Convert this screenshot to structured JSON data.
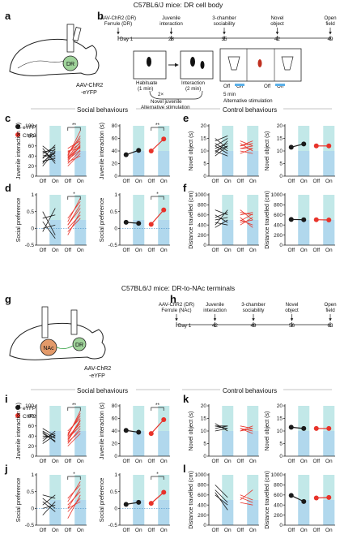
{
  "colors": {
    "on_light": "#a9d2f0",
    "on_teal": "#90d6d6",
    "efyp": "#1a1a1a",
    "chr2": "#e8332a",
    "vector": "#2a9d3a"
  },
  "top": {
    "title": "C57BL6/J mice: DR cell body",
    "panels": {
      "a": "a",
      "b": "b",
      "c": "c",
      "d": "d",
      "e": "e",
      "f": "f"
    },
    "brain_region": "DR",
    "vector": "AAV-ChR2\n-eYFP",
    "timeline": {
      "ticks": [
        {
          "day": "Day 1",
          "label": "AAV-ChR2 (DR)\nFerrule (DR)"
        },
        {
          "day": "28",
          "label": "Juvenile\ninteraction"
        },
        {
          "day": "35",
          "label": "3-chamber\nsociability"
        },
        {
          "day": "42",
          "label": "Novel\nobject"
        },
        {
          "day": "49",
          "label": "Open\nfield"
        }
      ]
    },
    "protocol": {
      "habituate": "Habituate\n(1 min)",
      "interaction": "Interaction\n(2 min)",
      "repeat": "2×",
      "juvenile_note": "Novel juvenile\nAlternative stimulation",
      "three_chamber": [
        "Off",
        "On",
        "Off",
        "On"
      ],
      "duration": "5 min",
      "alt_stim": "Alternative stimulation"
    },
    "social_header": "Social behaviours",
    "control_header": "Control behaviours"
  },
  "bottom": {
    "title": "C57BL6/J mice: DR-to-NAc terminals",
    "panels": {
      "g": "g",
      "h": "h",
      "i": "i",
      "j": "j",
      "k": "k",
      "l": "l"
    },
    "brain_region_1": "NAc",
    "brain_region_2": "DR",
    "vector": "AAV-ChR2\n-eYFP",
    "timeline": {
      "ticks": [
        {
          "day": "Day 1",
          "label": "AAV-ChR2 (DR)\nFerrule (NAc)"
        },
        {
          "day": "42",
          "label": "Juvenile\ninteraction"
        },
        {
          "day": "49",
          "label": "3-chamber\nsociability"
        },
        {
          "day": "56",
          "label": "Novel\nobject"
        },
        {
          "day": "63",
          "label": "Open\nfield"
        }
      ]
    },
    "social_header": "Social behaviours",
    "control_header": "Control behaviours"
  },
  "legend": {
    "efyp": "eYFP",
    "chr2": "ChR2"
  },
  "x_ticks": [
    "Off",
    "On"
  ],
  "axis_labels": {
    "juvenile": "Juvenile interaction (s)",
    "social": "Social preference",
    "novel": "Novel object (s)",
    "distance": "Distance travelled (cm)"
  },
  "significance": {
    "c": "**",
    "c_mean": "**",
    "d": "*",
    "d_mean": "*",
    "i": "**",
    "i_mean": "**",
    "j": "*",
    "j_mean": "*"
  },
  "chart_data": [
    {
      "id": "c-left",
      "type": "line",
      "ylabel": "Juvenile interaction (s)",
      "ylim": [
        0,
        100
      ],
      "yticks": [
        0,
        20,
        40,
        60,
        80,
        100
      ],
      "series": [
        {
          "name": "eYFP",
          "pairs": [
            [
              38,
              45
            ],
            [
              50,
              30
            ],
            [
              25,
              55
            ],
            [
              60,
              40
            ],
            [
              30,
              35
            ],
            [
              45,
              58
            ],
            [
              20,
              50
            ],
            [
              55,
              25
            ],
            [
              35,
              62
            ],
            [
              42,
              38
            ],
            [
              28,
              48
            ],
            [
              48,
              52
            ]
          ]
        },
        {
          "name": "ChR2",
          "pairs": [
            [
              30,
              60
            ],
            [
              45,
              75
            ],
            [
              25,
              50
            ],
            [
              50,
              55
            ],
            [
              38,
              68
            ],
            [
              20,
              45
            ],
            [
              55,
              70
            ],
            [
              35,
              58
            ],
            [
              42,
              80
            ],
            [
              28,
              40
            ],
            [
              48,
              65
            ],
            [
              33,
              52
            ],
            [
              40,
              90
            ],
            [
              36,
              62
            ]
          ]
        }
      ]
    },
    {
      "id": "c-right",
      "type": "line",
      "ylabel": "Juvenile interaction (s)",
      "ylim": [
        0,
        80
      ],
      "yticks": [
        0,
        20,
        40,
        60,
        80
      ],
      "series": [
        {
          "name": "eYFP",
          "pairs": [
            [
              34,
              41
            ]
          ]
        },
        {
          "name": "ChR2",
          "pairs": [
            [
              40,
              59
            ]
          ]
        }
      ]
    },
    {
      "id": "d-left",
      "type": "line",
      "ylabel": "Social preference",
      "ylim": [
        -0.5,
        1.0
      ],
      "yticks": [
        -0.5,
        0,
        0.5,
        1.0
      ],
      "series": [
        {
          "name": "eYFP",
          "pairs": [
            [
              0.5,
              -0.2
            ],
            [
              0.3,
              0.4
            ],
            [
              -0.1,
              0.6
            ],
            [
              0.2,
              -0.3
            ],
            [
              0.0,
              0.1
            ]
          ]
        },
        {
          "name": "ChR2",
          "pairs": [
            [
              0.1,
              0.6
            ],
            [
              -0.2,
              0.5
            ],
            [
              0.3,
              0.8
            ],
            [
              0.0,
              0.4
            ],
            [
              0.2,
              0.9
            ],
            [
              -0.1,
              0.3
            ],
            [
              0.1,
              0.7
            ]
          ]
        }
      ]
    },
    {
      "id": "d-right",
      "type": "line",
      "ylabel": "Social preference",
      "ylim": [
        -0.5,
        1.0
      ],
      "yticks": [
        -0.5,
        0,
        0.5,
        1.0
      ],
      "series": [
        {
          "name": "eYFP",
          "pairs": [
            [
              0.18,
              0.15
            ]
          ]
        },
        {
          "name": "ChR2",
          "pairs": [
            [
              0.12,
              0.55
            ]
          ]
        }
      ]
    },
    {
      "id": "e-left",
      "type": "line",
      "ylabel": "Novel object (s)",
      "ylim": [
        0,
        20
      ],
      "yticks": [
        0,
        5,
        10,
        15,
        20
      ],
      "series": [
        {
          "name": "eYFP",
          "pairs": [
            [
              12,
              15
            ],
            [
              10,
              8
            ],
            [
              14,
              16
            ],
            [
              8,
              12
            ],
            [
              11,
              13
            ],
            [
              13,
              10
            ],
            [
              9,
              14
            ],
            [
              15,
              11
            ],
            [
              10,
              12
            ],
            [
              12,
              9
            ]
          ]
        },
        {
          "name": "ChR2",
          "pairs": [
            [
              11,
              12
            ],
            [
              13,
              10
            ],
            [
              9,
              11
            ],
            [
              12,
              13
            ],
            [
              10,
              9
            ],
            [
              14,
              12
            ],
            [
              11,
              11
            ],
            [
              12,
              14
            ]
          ]
        }
      ]
    },
    {
      "id": "e-right",
      "type": "line",
      "ylabel": "Novel object (s)",
      "ylim": [
        0,
        20
      ],
      "yticks": [
        0,
        5,
        10,
        15,
        20
      ],
      "series": [
        {
          "name": "eYFP",
          "pairs": [
            [
              11.5,
              12.8
            ]
          ]
        },
        {
          "name": "ChR2",
          "pairs": [
            [
              12,
              12
            ]
          ]
        }
      ]
    },
    {
      "id": "f-left",
      "type": "line",
      "ylabel": "Distance travelled (cm)",
      "ylim": [
        0,
        1000
      ],
      "yticks": [
        0,
        200,
        400,
        600,
        800,
        1000
      ],
      "series": [
        {
          "name": "eYFP",
          "pairs": [
            [
              400,
              700
            ],
            [
              600,
              450
            ],
            [
              500,
              550
            ],
            [
              700,
              600
            ],
            [
              450,
              400
            ],
            [
              550,
              650
            ],
            [
              350,
              500
            ]
          ]
        },
        {
          "name": "ChR2",
          "pairs": [
            [
              500,
              400
            ],
            [
              600,
              650
            ],
            [
              450,
              500
            ],
            [
              550,
              350
            ],
            [
              650,
              600
            ],
            [
              400,
              550
            ],
            [
              700,
              500
            ],
            [
              480,
              620
            ]
          ]
        }
      ]
    },
    {
      "id": "f-right",
      "type": "line",
      "ylabel": "Distance travelled (cm)",
      "ylim": [
        0,
        1000
      ],
      "yticks": [
        0,
        200,
        400,
        600,
        800,
        1000
      ],
      "series": [
        {
          "name": "eYFP",
          "pairs": [
            [
              510,
              505
            ]
          ]
        },
        {
          "name": "ChR2",
          "pairs": [
            [
              505,
              500
            ]
          ]
        }
      ]
    },
    {
      "id": "i-left",
      "type": "line",
      "ylabel": "Juvenile interaction (s)",
      "ylim": [
        0,
        100
      ],
      "yticks": [
        0,
        20,
        40,
        60,
        80,
        100
      ],
      "series": [
        {
          "name": "eYFP",
          "pairs": [
            [
              45,
              30
            ],
            [
              30,
              50
            ],
            [
              55,
              40
            ],
            [
              40,
              38
            ],
            [
              35,
              45
            ],
            [
              50,
              35
            ],
            [
              25,
              42
            ],
            [
              48,
              28
            ]
          ]
        },
        {
          "name": "ChR2",
          "pairs": [
            [
              30,
              70
            ],
            [
              40,
              90
            ],
            [
              25,
              55
            ],
            [
              45,
              80
            ],
            [
              35,
              60
            ],
            [
              50,
              75
            ],
            [
              20,
              45
            ],
            [
              38,
              65
            ],
            [
              42,
              85
            ],
            [
              28,
              50
            ],
            [
              33,
              72
            ]
          ]
        }
      ]
    },
    {
      "id": "i-right",
      "type": "line",
      "ylabel": "Juvenile interaction (s)",
      "ylim": [
        0,
        80
      ],
      "yticks": [
        0,
        20,
        40,
        60,
        80
      ],
      "series": [
        {
          "name": "eYFP",
          "pairs": [
            [
              41,
              38
            ]
          ]
        },
        {
          "name": "ChR2",
          "pairs": [
            [
              36,
              58
            ]
          ]
        }
      ]
    },
    {
      "id": "j-left",
      "type": "line",
      "ylabel": "Social preference",
      "ylim": [
        -0.5,
        1.0
      ],
      "yticks": [
        -0.5,
        0,
        0.5,
        1.0
      ],
      "series": [
        {
          "name": "eYFP",
          "pairs": [
            [
              0.2,
              -0.1
            ],
            [
              0.4,
              0.3
            ],
            [
              -0.2,
              0.2
            ],
            [
              0.1,
              0.4
            ],
            [
              0.0,
              0.1
            ],
            [
              0.3,
              0.0
            ]
          ]
        },
        {
          "name": "ChR2",
          "pairs": [
            [
              0.0,
              0.6
            ],
            [
              -0.3,
              0.4
            ],
            [
              0.2,
              0.8
            ],
            [
              0.1,
              0.5
            ],
            [
              -0.1,
              0.3
            ],
            [
              0.3,
              0.7
            ],
            [
              0.0,
              0.2
            ]
          ]
        }
      ]
    },
    {
      "id": "j-right",
      "type": "line",
      "ylabel": "Social preference",
      "ylim": [
        -0.5,
        1.0
      ],
      "yticks": [
        -0.5,
        0,
        0.5,
        1.0
      ],
      "series": [
        {
          "name": "eYFP",
          "pairs": [
            [
              0.12,
              0.18
            ]
          ]
        },
        {
          "name": "ChR2",
          "pairs": [
            [
              0.15,
              0.48
            ]
          ]
        }
      ]
    },
    {
      "id": "k-left",
      "type": "line",
      "ylabel": "Novel object (s)",
      "ylim": [
        0,
        20
      ],
      "yticks": [
        0,
        5,
        10,
        15,
        20
      ],
      "series": [
        {
          "name": "eYFP",
          "pairs": [
            [
              12,
              11
            ],
            [
              11,
              12
            ],
            [
              13,
              10
            ],
            [
              10,
              11
            ],
            [
              12,
              12
            ]
          ]
        },
        {
          "name": "ChR2",
          "pairs": [
            [
              11,
              10
            ],
            [
              10,
              12
            ],
            [
              12,
              11
            ],
            [
              11,
              9
            ],
            [
              10,
              11
            ]
          ]
        }
      ]
    },
    {
      "id": "k-right",
      "type": "line",
      "ylabel": "Novel object (s)",
      "ylim": [
        0,
        20
      ],
      "yticks": [
        0,
        5,
        10,
        15,
        20
      ],
      "series": [
        {
          "name": "eYFP",
          "pairs": [
            [
              11.5,
              11
            ]
          ]
        },
        {
          "name": "ChR2",
          "pairs": [
            [
              11,
              11
            ]
          ]
        }
      ]
    },
    {
      "id": "l-left",
      "type": "line",
      "ylabel": "Distance travelled (cm)",
      "ylim": [
        0,
        1000
      ],
      "yticks": [
        0,
        200,
        400,
        600,
        800,
        1000
      ],
      "series": [
        {
          "name": "eYFP",
          "pairs": [
            [
              800,
              550
            ],
            [
              700,
              450
            ],
            [
              650,
              300
            ],
            [
              600,
              400
            ]
          ]
        },
        {
          "name": "ChR2",
          "pairs": [
            [
              500,
              700
            ],
            [
              450,
              400
            ],
            [
              600,
              500
            ],
            [
              550,
              450
            ]
          ]
        }
      ]
    },
    {
      "id": "l-right",
      "type": "line",
      "ylabel": "Distance travelled (cm)",
      "ylim": [
        0,
        1000
      ],
      "yticks": [
        0,
        200,
        400,
        600,
        800,
        1000
      ],
      "series": [
        {
          "name": "eYFP",
          "pairs": [
            [
              590,
              470
            ]
          ]
        },
        {
          "name": "ChR2",
          "pairs": [
            [
              540,
              550
            ]
          ]
        }
      ]
    }
  ]
}
